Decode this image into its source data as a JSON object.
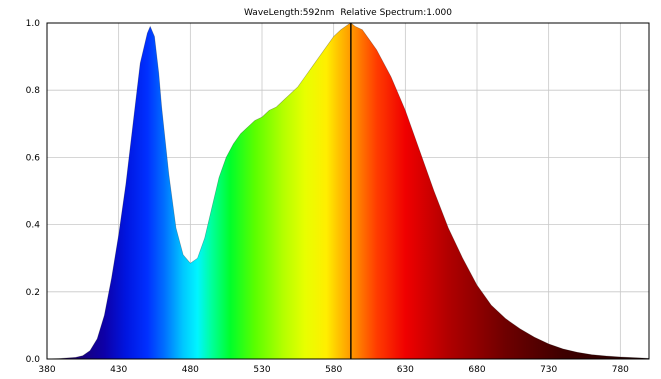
{
  "chart_data": {
    "type": "area",
    "readout": {
      "wavelength_label": "WaveLength:",
      "wavelength_value": "592nm",
      "spectrum_label": "Relative Spectrum:",
      "spectrum_value": "1.000",
      "cursor_x": 592
    },
    "xlabel": "",
    "ylabel": "",
    "xlim": [
      380,
      800
    ],
    "ylim": [
      0,
      1.0
    ],
    "x_ticks": [
      "380",
      "430",
      "480",
      "530",
      "580",
      "630",
      "680",
      "730",
      "780"
    ],
    "y_ticks": [
      "0.0",
      "0.2",
      "0.4",
      "0.6",
      "0.8",
      "1.0"
    ],
    "grid": true,
    "fill": "visible-spectrum-gradient",
    "series": [
      {
        "x": [
          380,
          390,
          400,
          405,
          410,
          415,
          420,
          425,
          430,
          435,
          440,
          445,
          450,
          452,
          455,
          458,
          460,
          465,
          470,
          475,
          480,
          485,
          490,
          495,
          500,
          505,
          510,
          515,
          520,
          525,
          530,
          535,
          540,
          545,
          550,
          555,
          560,
          565,
          570,
          575,
          580,
          585,
          590,
          592,
          595,
          600,
          605,
          610,
          615,
          620,
          625,
          630,
          640,
          650,
          660,
          670,
          680,
          690,
          700,
          710,
          720,
          730,
          740,
          750,
          760,
          770,
          780,
          790,
          800
        ],
        "y": [
          0.0,
          0.002,
          0.005,
          0.01,
          0.025,
          0.06,
          0.13,
          0.24,
          0.37,
          0.52,
          0.7,
          0.88,
          0.97,
          0.99,
          0.96,
          0.85,
          0.75,
          0.55,
          0.39,
          0.31,
          0.285,
          0.3,
          0.36,
          0.45,
          0.54,
          0.6,
          0.64,
          0.67,
          0.69,
          0.71,
          0.72,
          0.74,
          0.75,
          0.77,
          0.79,
          0.81,
          0.84,
          0.87,
          0.9,
          0.93,
          0.96,
          0.98,
          0.995,
          1.0,
          0.99,
          0.98,
          0.95,
          0.92,
          0.88,
          0.84,
          0.79,
          0.74,
          0.62,
          0.5,
          0.39,
          0.3,
          0.22,
          0.16,
          0.12,
          0.09,
          0.065,
          0.045,
          0.03,
          0.02,
          0.013,
          0.009,
          0.006,
          0.004,
          0.002
        ]
      }
    ]
  }
}
